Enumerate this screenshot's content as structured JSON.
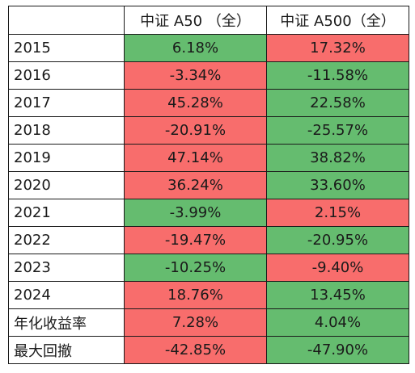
{
  "header": {
    "blank": "",
    "col1": "中证 A50 （全）",
    "col2": "中证 A500（全）"
  },
  "colors": {
    "red": "#f86d6c",
    "green": "#65bc6f"
  },
  "rows": [
    {
      "label": "2015",
      "a50": "6.18%",
      "a500": "17.32%",
      "a50_color": "green",
      "a500_color": "red"
    },
    {
      "label": "2016",
      "a50": "-3.34%",
      "a500": "-11.58%",
      "a50_color": "red",
      "a500_color": "green"
    },
    {
      "label": "2017",
      "a50": "45.28%",
      "a500": "22.58%",
      "a50_color": "red",
      "a500_color": "green"
    },
    {
      "label": "2018",
      "a50": "-20.91%",
      "a500": "-25.57%",
      "a50_color": "red",
      "a500_color": "green"
    },
    {
      "label": "2019",
      "a50": "47.14%",
      "a500": "38.82%",
      "a50_color": "red",
      "a500_color": "green"
    },
    {
      "label": "2020",
      "a50": "36.24%",
      "a500": "33.60%",
      "a50_color": "red",
      "a500_color": "green"
    },
    {
      "label": "2021",
      "a50": "-3.99%",
      "a500": "2.15%",
      "a50_color": "green",
      "a500_color": "red"
    },
    {
      "label": "2022",
      "a50": "-19.47%",
      "a500": "-20.95%",
      "a50_color": "red",
      "a500_color": "green"
    },
    {
      "label": "2023",
      "a50": "-10.25%",
      "a500": "-9.40%",
      "a50_color": "green",
      "a500_color": "red"
    },
    {
      "label": "2024",
      "a50": "18.76%",
      "a500": "13.45%",
      "a50_color": "red",
      "a500_color": "green"
    },
    {
      "label": "年化收益率",
      "a50": "7.28%",
      "a500": "4.04%",
      "a50_color": "red",
      "a500_color": "green"
    },
    {
      "label": "最大回撤",
      "a50": "-42.85%",
      "a500": "-47.90%",
      "a50_color": "red",
      "a500_color": "green"
    }
  ]
}
